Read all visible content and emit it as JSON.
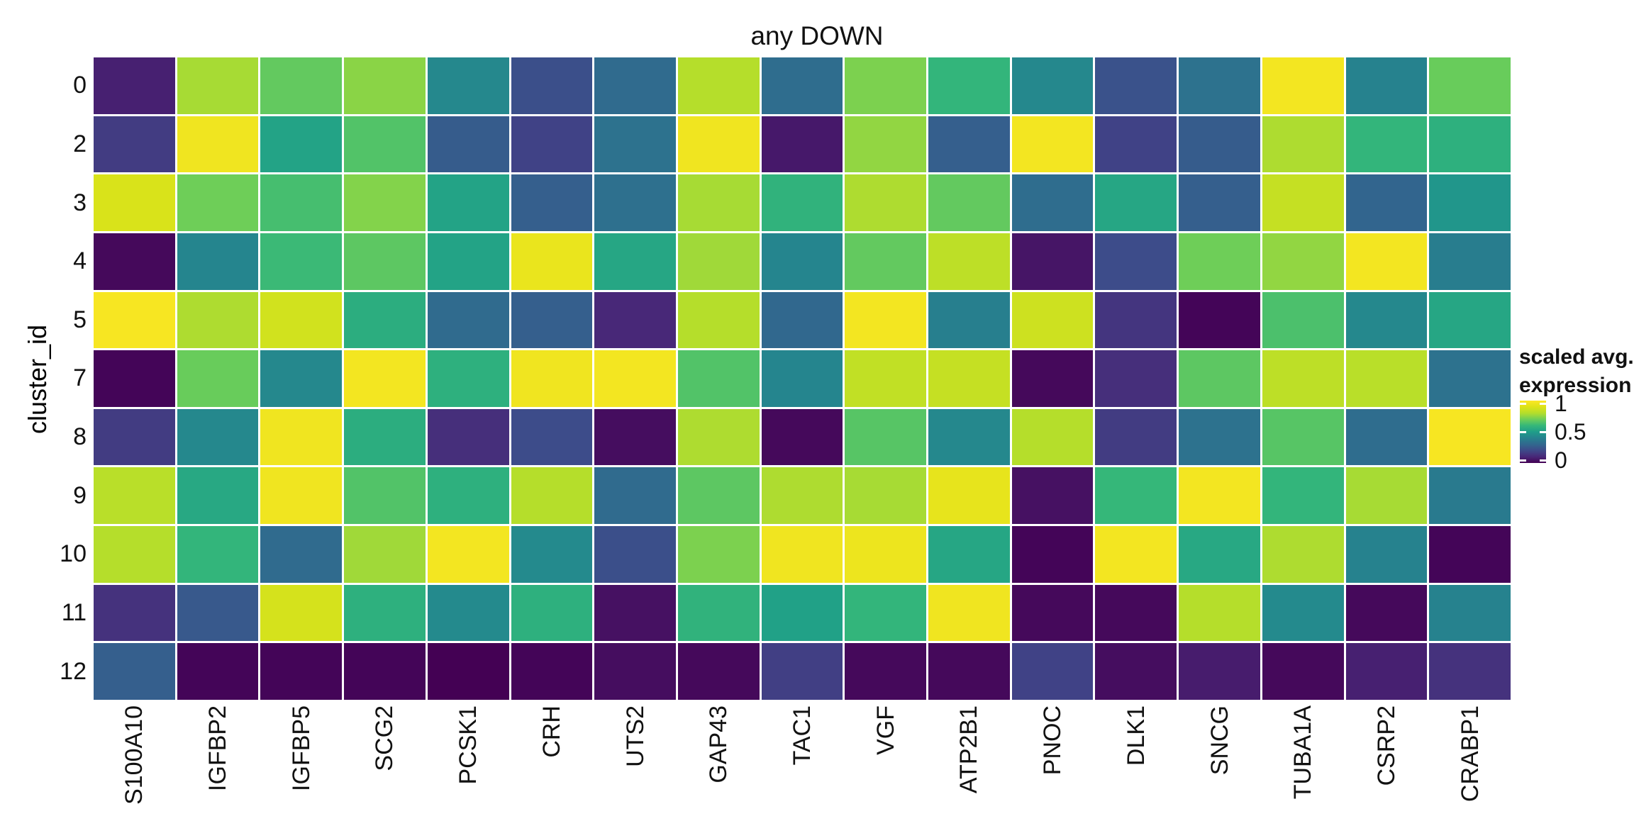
{
  "title": "any DOWN",
  "y_axis": {
    "title": "cluster_id",
    "labels": [
      "0",
      "2",
      "3",
      "4",
      "5",
      "7",
      "8",
      "9",
      "10",
      "11",
      "12"
    ]
  },
  "x_axis": {
    "labels": [
      "S100A10",
      "IGFBP2",
      "IGFBP5",
      "SCG2",
      "PCSK1",
      "CRH",
      "UTS2",
      "GAP43",
      "TAC1",
      "VGF",
      "ATP2B1",
      "PNOC",
      "DLK1",
      "SNCG",
      "TUBA1A",
      "CSRP2",
      "CRABP1"
    ]
  },
  "legend": {
    "title_line1": "scaled avg.",
    "title_line2": "expression",
    "tick_labels": [
      "1",
      "0.5",
      "0"
    ],
    "tick_values": [
      1,
      0.5,
      0
    ]
  },
  "chart_data": {
    "type": "heatmap",
    "title": "any DOWN",
    "xlabel": "",
    "ylabel": "cluster_id",
    "legend_label": "scaled avg. expression",
    "columns": [
      "S100A10",
      "IGFBP2",
      "IGFBP5",
      "SCG2",
      "PCSK1",
      "CRH",
      "UTS2",
      "GAP43",
      "TAC1",
      "VGF",
      "ATP2B1",
      "PNOC",
      "DLK1",
      "SNCG",
      "TUBA1A",
      "CSRP2",
      "CRABP1"
    ],
    "rows": [
      "0",
      "2",
      "3",
      "4",
      "5",
      "7",
      "8",
      "9",
      "10",
      "11",
      "12"
    ],
    "value_range": [
      0,
      1
    ],
    "grid_gap_color": "#ffffff",
    "colormap": "viridis",
    "colormap_stops": [
      [
        0.0,
        "#440154"
      ],
      [
        0.1,
        "#482878"
      ],
      [
        0.2,
        "#3e4989"
      ],
      [
        0.3,
        "#31688e"
      ],
      [
        0.4,
        "#26828e"
      ],
      [
        0.5,
        "#1f9e89"
      ],
      [
        0.6,
        "#35b779"
      ],
      [
        0.7,
        "#6ece58"
      ],
      [
        0.8,
        "#b5de2b"
      ],
      [
        0.9,
        "#dde318"
      ],
      [
        1.0,
        "#fde725"
      ]
    ],
    "values": [
      [
        0.08,
        0.78,
        0.68,
        0.74,
        0.42,
        0.22,
        0.31,
        0.8,
        0.32,
        0.72,
        0.59,
        0.42,
        0.23,
        0.34,
        0.97,
        0.4,
        0.69
      ],
      [
        0.16,
        0.96,
        0.52,
        0.65,
        0.26,
        0.18,
        0.34,
        0.96,
        0.06,
        0.75,
        0.27,
        0.97,
        0.18,
        0.26,
        0.79,
        0.59,
        0.57
      ],
      [
        0.89,
        0.7,
        0.63,
        0.73,
        0.52,
        0.27,
        0.33,
        0.78,
        0.58,
        0.79,
        0.68,
        0.32,
        0.53,
        0.27,
        0.84,
        0.29,
        0.47
      ],
      [
        0.02,
        0.41,
        0.61,
        0.67,
        0.52,
        0.94,
        0.53,
        0.77,
        0.41,
        0.68,
        0.82,
        0.05,
        0.21,
        0.7,
        0.75,
        0.97,
        0.38
      ],
      [
        0.98,
        0.79,
        0.87,
        0.56,
        0.31,
        0.27,
        0.1,
        0.8,
        0.3,
        0.97,
        0.39,
        0.86,
        0.14,
        0.01,
        0.64,
        0.42,
        0.53
      ],
      [
        0.01,
        0.69,
        0.42,
        0.97,
        0.57,
        0.96,
        0.97,
        0.65,
        0.41,
        0.83,
        0.84,
        0.02,
        0.12,
        0.67,
        0.82,
        0.81,
        0.34
      ],
      [
        0.16,
        0.42,
        0.96,
        0.56,
        0.12,
        0.21,
        0.03,
        0.79,
        0.02,
        0.66,
        0.42,
        0.8,
        0.16,
        0.34,
        0.66,
        0.32,
        0.98
      ],
      [
        0.81,
        0.54,
        0.96,
        0.65,
        0.57,
        0.8,
        0.31,
        0.67,
        0.79,
        0.78,
        0.93,
        0.04,
        0.6,
        0.97,
        0.59,
        0.78,
        0.37
      ],
      [
        0.8,
        0.59,
        0.31,
        0.77,
        0.97,
        0.43,
        0.22,
        0.72,
        0.96,
        0.95,
        0.53,
        0.01,
        0.97,
        0.54,
        0.79,
        0.4,
        0.01
      ],
      [
        0.13,
        0.25,
        0.88,
        0.57,
        0.43,
        0.57,
        0.04,
        0.58,
        0.51,
        0.59,
        0.96,
        0.02,
        0.02,
        0.8,
        0.43,
        0.02,
        0.4
      ],
      [
        0.27,
        0.01,
        0.01,
        0.01,
        0.0,
        0.01,
        0.03,
        0.02,
        0.17,
        0.02,
        0.02,
        0.18,
        0.03,
        0.07,
        0.02,
        0.08,
        0.13
      ]
    ]
  }
}
